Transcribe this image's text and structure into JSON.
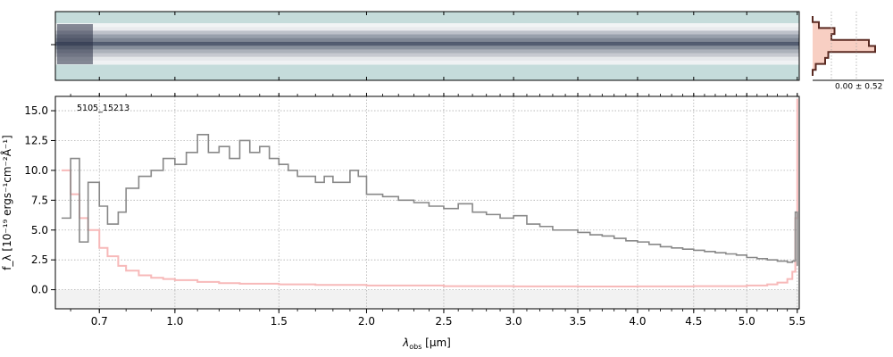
{
  "chart_data": [
    {
      "type": "heatmap",
      "panel": "2d-spectrum",
      "description": "",
      "x_range_um": [
        0.55,
        5.52
      ],
      "profile_rows": [
        0.05,
        0.1,
        0.35,
        0.55,
        0.7,
        0.95,
        0.65,
        0.45,
        0.3,
        0.12,
        0.06
      ],
      "colors": {
        "background": "#c5dcdb",
        "dark": "#1a2540",
        "light": "#ffffff"
      }
    },
    {
      "type": "area",
      "panel": "spatial-profile",
      "annotation": "0.00 ± 0.52",
      "colors": {
        "fill": "#f8cfc3",
        "line": "#5a2a22"
      }
    },
    {
      "type": "line",
      "panel": "1d-spectrum",
      "object_label": "5105_15213",
      "xlabel_main": "λ",
      "xlabel_sub": "obs",
      "xlabel_unit": " [μm]",
      "ylabel": "f_λ [10⁻¹⁹ ergs⁻¹cm⁻²Å⁻¹]",
      "x_scale": "sqrt-like (ticks at 0.7,1.0,1.5,2.0,2.5,3.0,3.5,4.0,4.5,5.0,5.5)",
      "xlim": [
        0.55,
        5.52
      ],
      "ylim": [
        -1.6,
        16.2
      ],
      "x_ticks": [
        "0.7",
        "1.0",
        "1.5",
        "2.0",
        "2.5",
        "3.0",
        "3.5",
        "4.0",
        "4.5",
        "5.0",
        "5.5"
      ],
      "x_tick_values": [
        0.7,
        1.0,
        1.5,
        2.0,
        2.5,
        3.0,
        3.5,
        4.0,
        4.5,
        5.0,
        5.5
      ],
      "y_ticks": [
        "0.0",
        "2.5",
        "5.0",
        "7.5",
        "10.0",
        "12.5",
        "15.0"
      ],
      "y_tick_values": [
        0.0,
        2.5,
        5.0,
        7.5,
        10.0,
        12.5,
        15.0
      ],
      "grid": true,
      "series": [
        {
          "color": "#888888",
          "x": [
            0.57,
            0.6,
            0.63,
            0.66,
            0.7,
            0.73,
            0.77,
            0.8,
            0.85,
            0.9,
            0.95,
            1.0,
            1.05,
            1.1,
            1.15,
            1.2,
            1.25,
            1.3,
            1.35,
            1.4,
            1.45,
            1.5,
            1.55,
            1.6,
            1.65,
            1.7,
            1.75,
            1.8,
            1.85,
            1.9,
            1.95,
            2.0,
            2.1,
            2.2,
            2.3,
            2.4,
            2.5,
            2.6,
            2.7,
            2.8,
            2.9,
            3.0,
            3.1,
            3.2,
            3.3,
            3.4,
            3.5,
            3.6,
            3.7,
            3.8,
            3.9,
            4.0,
            4.1,
            4.2,
            4.3,
            4.4,
            4.5,
            4.6,
            4.7,
            4.8,
            4.9,
            5.0,
            5.1,
            5.2,
            5.3,
            5.4,
            5.45,
            5.48,
            5.5
          ],
          "y": [
            6.0,
            11.0,
            4.0,
            9.0,
            7.0,
            5.5,
            6.5,
            8.5,
            9.5,
            10.0,
            11.0,
            10.5,
            11.5,
            13.0,
            11.5,
            12.0,
            11.0,
            12.5,
            11.5,
            12.0,
            11.0,
            10.5,
            10.0,
            9.5,
            9.5,
            9.0,
            9.5,
            9.0,
            9.0,
            10.0,
            9.5,
            8.0,
            7.8,
            7.5,
            7.3,
            7.0,
            6.8,
            7.2,
            6.5,
            6.3,
            6.0,
            6.2,
            5.5,
            5.3,
            5.0,
            5.0,
            4.8,
            4.6,
            4.5,
            4.3,
            4.1,
            4.0,
            3.8,
            3.6,
            3.5,
            3.4,
            3.3,
            3.2,
            3.1,
            3.0,
            2.9,
            2.7,
            2.6,
            2.5,
            2.4,
            2.3,
            2.4,
            6.5,
            2.0
          ]
        },
        {
          "color": "#f7b9b9",
          "x": [
            0.57,
            0.6,
            0.63,
            0.66,
            0.7,
            0.73,
            0.77,
            0.8,
            0.85,
            0.9,
            0.95,
            1.0,
            1.1,
            1.2,
            1.3,
            1.5,
            1.7,
            2.0,
            2.5,
            3.0,
            3.5,
            4.0,
            4.5,
            5.0,
            5.2,
            5.3,
            5.4,
            5.45,
            5.48,
            5.5
          ],
          "y": [
            10.0,
            8.0,
            6.0,
            5.0,
            3.5,
            2.8,
            2.0,
            1.6,
            1.2,
            1.0,
            0.9,
            0.8,
            0.65,
            0.55,
            0.5,
            0.45,
            0.4,
            0.35,
            0.3,
            0.28,
            0.27,
            0.28,
            0.3,
            0.35,
            0.45,
            0.6,
            0.9,
            1.5,
            6.0,
            16.0
          ]
        }
      ]
    }
  ]
}
